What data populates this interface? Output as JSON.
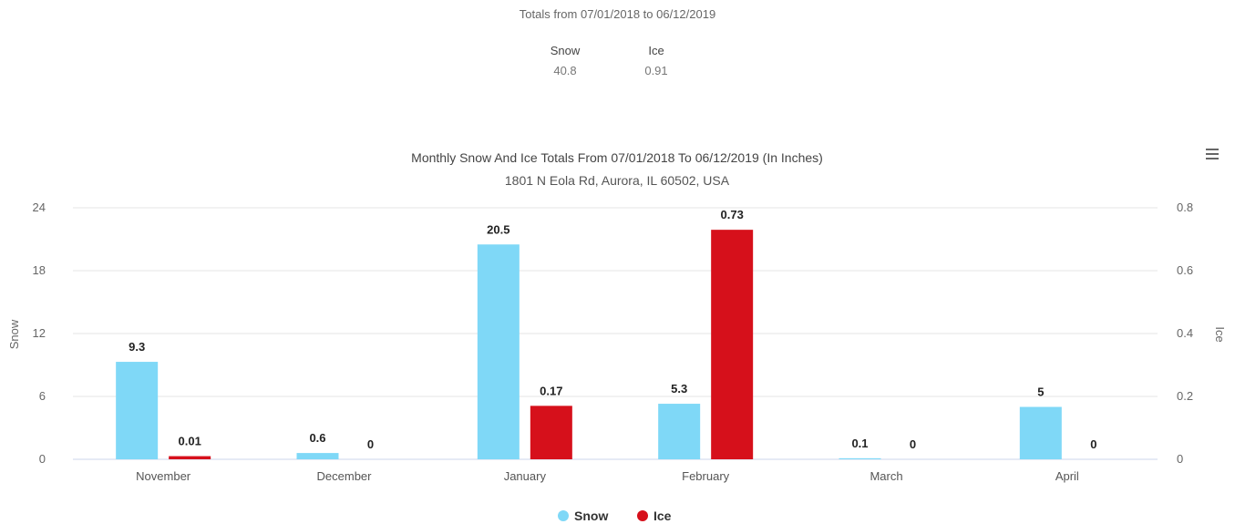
{
  "totals": {
    "heading": "Totals from 07/01/2018 to 06/12/2019",
    "columns": [
      {
        "label": "Snow",
        "value": "40.8"
      },
      {
        "label": "Ice",
        "value": "0.91"
      }
    ]
  },
  "chart_data": {
    "type": "bar",
    "title": "Monthly Snow And Ice Totals From 07/01/2018 To 06/12/2019 (In Inches)",
    "subtitle": "1801 N Eola Rd, Aurora, IL 60502, USA",
    "categories": [
      "November",
      "December",
      "January",
      "February",
      "March",
      "April"
    ],
    "series": [
      {
        "name": "Snow",
        "axis": "left",
        "color": "#7fd8f7",
        "values": [
          9.3,
          0.6,
          20.5,
          5.3,
          0.1,
          5
        ],
        "labels": [
          "9.3",
          "0.6",
          "20.5",
          "5.3",
          "0.1",
          "5"
        ]
      },
      {
        "name": "Ice",
        "axis": "right",
        "color": "#d6101b",
        "values": [
          0.01,
          0,
          0.17,
          0.73,
          0,
          0
        ],
        "labels": [
          "0.01",
          "0",
          "0.17",
          "0.73",
          "0",
          "0"
        ]
      }
    ],
    "y_left": {
      "label": "Snow",
      "min": 0,
      "max": 24,
      "ticks": [
        "0",
        "6",
        "12",
        "18",
        "24"
      ]
    },
    "y_right": {
      "label": "Ice",
      "min": 0,
      "max": 0.8,
      "ticks": [
        "0",
        "0.2",
        "0.4",
        "0.6",
        "0.8"
      ]
    },
    "grid": true,
    "legend": "bottom-center"
  },
  "icons": {
    "menu": "hamburger-menu-icon"
  }
}
